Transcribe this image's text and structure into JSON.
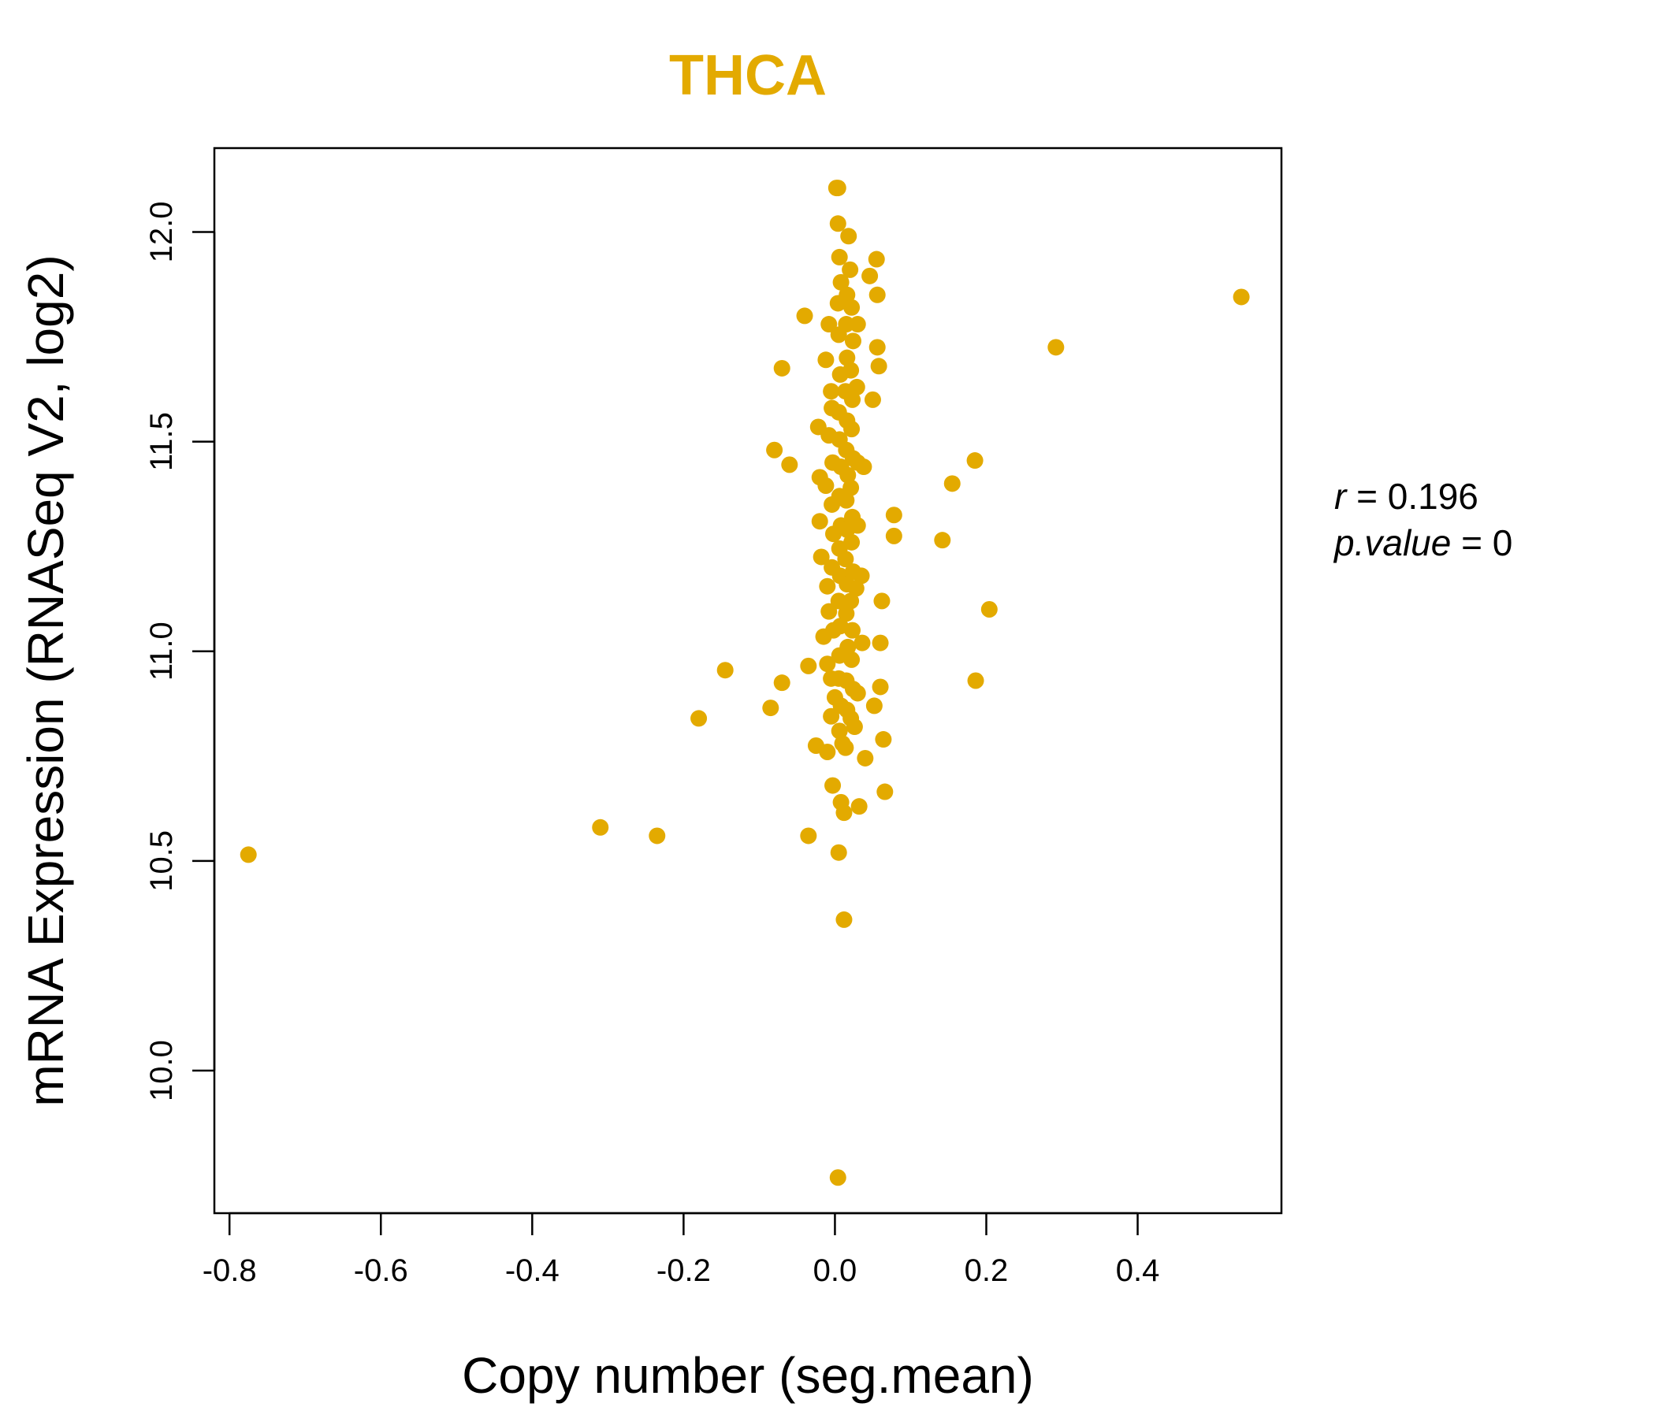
{
  "chart_data": {
    "type": "scatter",
    "title": "THCA",
    "xlabel": "Copy number (seg.mean)",
    "ylabel": "mRNA Expression (RNASeq V2, log2)",
    "xlim": [
      -0.82,
      0.59
    ],
    "ylim": [
      9.66,
      12.2
    ],
    "x_ticks": [
      "-0.8",
      "-0.6",
      "-0.4",
      "-0.2",
      "0.0",
      "0.2",
      "0.4"
    ],
    "x_tick_values": [
      -0.8,
      -0.6,
      -0.4,
      -0.2,
      0.0,
      0.2,
      0.4
    ],
    "y_ticks": [
      "10.0",
      "10.5",
      "11.0",
      "11.5",
      "12.0"
    ],
    "y_tick_values": [
      10.0,
      10.5,
      11.0,
      11.5,
      12.0
    ],
    "color": "#E3AA00",
    "annotations": {
      "r_symbol": "r",
      "r_eq": " = ",
      "r_value": "0.196",
      "p_symbol": "p.value",
      "p_eq": " = ",
      "p_value": "0"
    },
    "points": [
      [
        -0.775,
        10.515
      ],
      [
        -0.31,
        10.58
      ],
      [
        -0.235,
        10.56
      ],
      [
        -0.18,
        10.84
      ],
      [
        -0.145,
        10.955
      ],
      [
        -0.085,
        10.865
      ],
      [
        -0.07,
        10.925
      ],
      [
        -0.08,
        11.48
      ],
      [
        -0.06,
        11.445
      ],
      [
        -0.07,
        11.675
      ],
      [
        -0.04,
        11.8
      ],
      [
        -0.035,
        10.56
      ],
      [
        -0.035,
        10.965
      ],
      [
        -0.025,
        10.775
      ],
      [
        -0.022,
        11.535
      ],
      [
        -0.02,
        11.415
      ],
      [
        -0.015,
        11.035
      ],
      [
        -0.012,
        11.395
      ],
      [
        -0.02,
        11.31
      ],
      [
        -0.018,
        11.225
      ],
      [
        -0.01,
        11.155
      ],
      [
        -0.008,
        11.095
      ],
      [
        -0.01,
        10.97
      ],
      [
        -0.005,
        10.935
      ],
      [
        -0.003,
        10.68
      ],
      [
        -0.01,
        10.76
      ],
      [
        -0.005,
        10.845
      ],
      [
        -0.008,
        11.515
      ],
      [
        -0.012,
        11.695
      ],
      [
        -0.008,
        11.78
      ],
      [
        -0.005,
        11.62
      ],
      [
        -0.004,
        11.58
      ],
      [
        -0.003,
        11.45
      ],
      [
        -0.004,
        11.35
      ],
      [
        -0.002,
        11.28
      ],
      [
        -0.004,
        11.2
      ],
      [
        -0.002,
        11.05
      ],
      [
        0.0,
        10.89
      ],
      [
        0.002,
        12.105
      ],
      [
        0.004,
        12.105
      ],
      [
        0.004,
        12.02
      ],
      [
        0.006,
        11.94
      ],
      [
        0.008,
        11.88
      ],
      [
        0.004,
        11.83
      ],
      [
        0.005,
        11.755
      ],
      [
        0.007,
        11.66
      ],
      [
        0.005,
        11.57
      ],
      [
        0.006,
        11.505
      ],
      [
        0.008,
        11.44
      ],
      [
        0.006,
        11.37
      ],
      [
        0.008,
        11.3
      ],
      [
        0.006,
        11.245
      ],
      [
        0.007,
        11.18
      ],
      [
        0.005,
        11.12
      ],
      [
        0.007,
        11.06
      ],
      [
        0.006,
        10.99
      ],
      [
        0.005,
        10.935
      ],
      [
        0.008,
        10.87
      ],
      [
        0.006,
        10.81
      ],
      [
        0.01,
        10.78
      ],
      [
        0.008,
        10.64
      ],
      [
        0.012,
        10.615
      ],
      [
        0.005,
        10.52
      ],
      [
        0.012,
        10.36
      ],
      [
        0.004,
        9.745
      ],
      [
        0.014,
        10.77
      ],
      [
        0.016,
        10.86
      ],
      [
        0.015,
        10.93
      ],
      [
        0.017,
        11.01
      ],
      [
        0.015,
        11.09
      ],
      [
        0.016,
        11.16
      ],
      [
        0.014,
        11.22
      ],
      [
        0.016,
        11.29
      ],
      [
        0.015,
        11.36
      ],
      [
        0.017,
        11.42
      ],
      [
        0.015,
        11.48
      ],
      [
        0.016,
        11.55
      ],
      [
        0.014,
        11.62
      ],
      [
        0.016,
        11.7
      ],
      [
        0.015,
        11.78
      ],
      [
        0.016,
        11.85
      ],
      [
        0.018,
        11.99
      ],
      [
        0.02,
        11.91
      ],
      [
        0.022,
        11.82
      ],
      [
        0.024,
        11.74
      ],
      [
        0.021,
        11.67
      ],
      [
        0.023,
        11.6
      ],
      [
        0.022,
        11.53
      ],
      [
        0.024,
        11.46
      ],
      [
        0.021,
        11.39
      ],
      [
        0.023,
        11.32
      ],
      [
        0.022,
        11.26
      ],
      [
        0.024,
        11.19
      ],
      [
        0.021,
        11.12
      ],
      [
        0.023,
        11.05
      ],
      [
        0.022,
        10.98
      ],
      [
        0.024,
        10.91
      ],
      [
        0.021,
        10.84
      ],
      [
        0.026,
        10.82
      ],
      [
        0.03,
        10.9
      ],
      [
        0.028,
        11.15
      ],
      [
        0.03,
        11.3
      ],
      [
        0.03,
        11.45
      ],
      [
        0.029,
        11.63
      ],
      [
        0.03,
        11.78
      ],
      [
        0.032,
        10.63
      ],
      [
        0.036,
        11.02
      ],
      [
        0.035,
        11.18
      ],
      [
        0.038,
        11.44
      ],
      [
        0.04,
        10.745
      ],
      [
        0.046,
        11.895
      ],
      [
        0.05,
        11.6
      ],
      [
        0.052,
        10.87
      ],
      [
        0.055,
        11.935
      ],
      [
        0.056,
        11.85
      ],
      [
        0.056,
        11.725
      ],
      [
        0.058,
        11.68
      ],
      [
        0.06,
        10.915
      ],
      [
        0.06,
        11.02
      ],
      [
        0.062,
        11.12
      ],
      [
        0.064,
        10.79
      ],
      [
        0.066,
        10.665
      ],
      [
        0.078,
        11.325
      ],
      [
        0.078,
        11.275
      ],
      [
        0.142,
        11.265
      ],
      [
        0.155,
        11.4
      ],
      [
        0.185,
        11.455
      ],
      [
        0.186,
        10.93
      ],
      [
        0.204,
        11.1
      ],
      [
        0.292,
        11.725
      ],
      [
        0.537,
        11.845
      ]
    ]
  }
}
